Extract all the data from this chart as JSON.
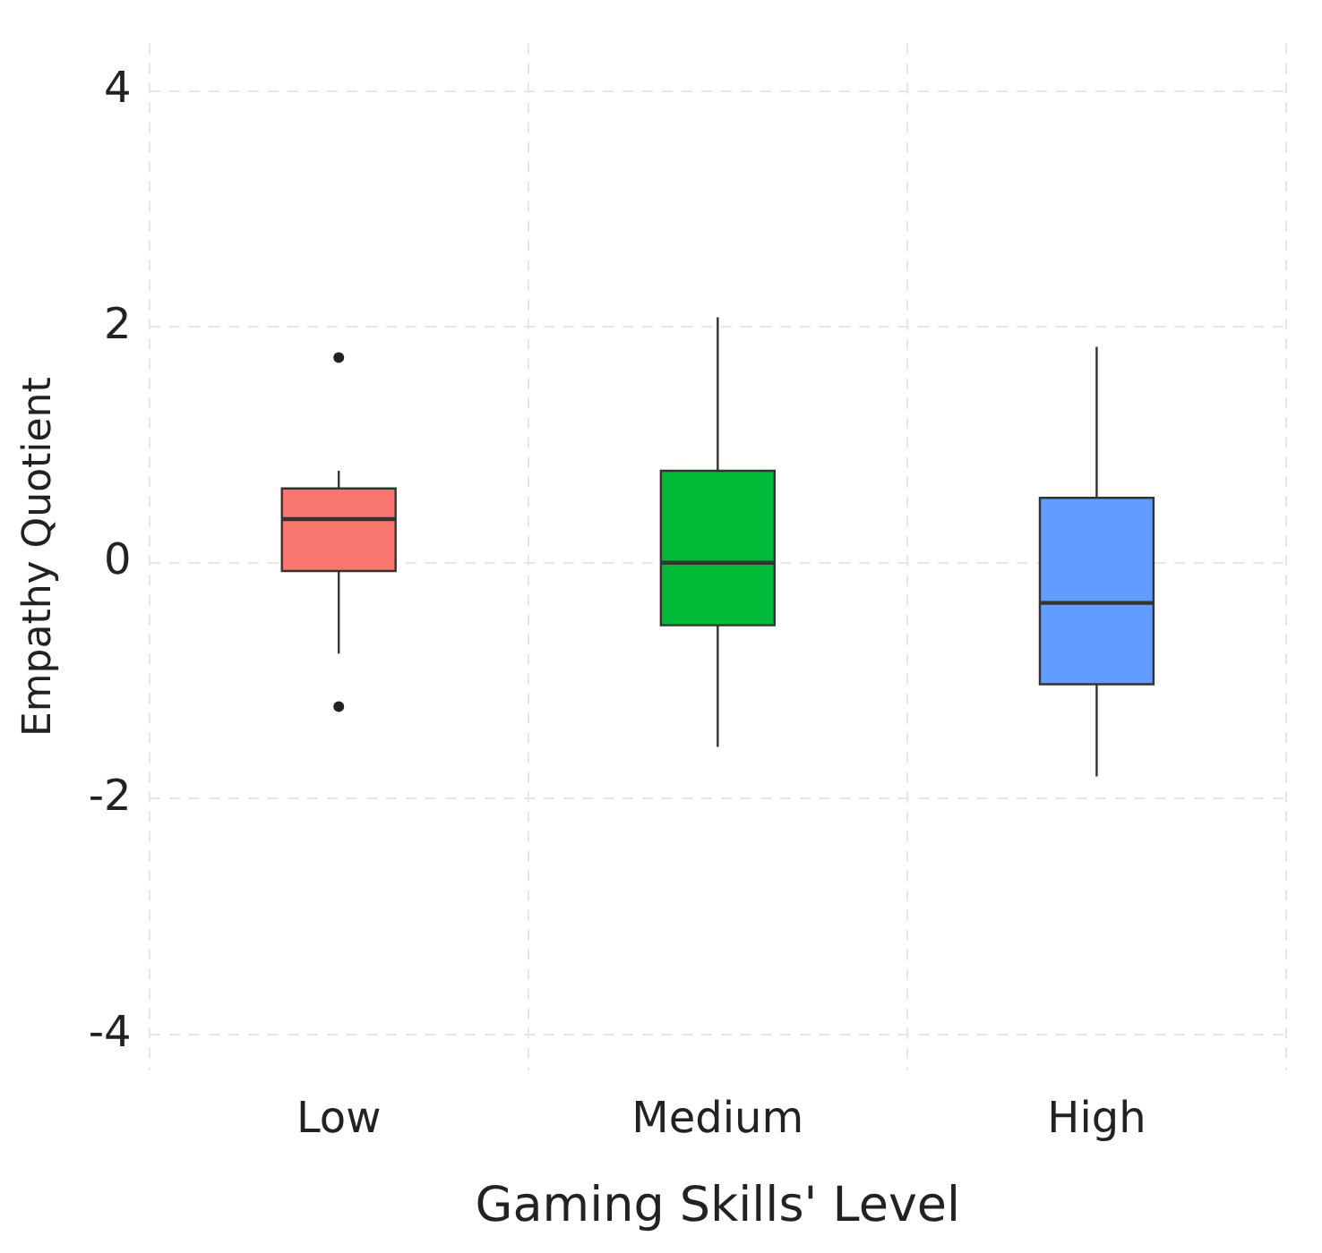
{
  "chart_data": {
    "type": "box",
    "xlabel": "Gaming Skills' Level",
    "ylabel": "Empathy Quotient",
    "categories": [
      "Low",
      "Medium",
      "High"
    ],
    "colors": [
      "#f8766d",
      "#00ba38",
      "#619cff"
    ],
    "boxes": [
      {
        "low": -0.77,
        "q1": -0.07,
        "median": 0.37,
        "q3": 0.63,
        "high": 0.78,
        "outliers": [
          1.74,
          -1.22
        ]
      },
      {
        "low": -1.56,
        "q1": -0.53,
        "median": 0,
        "q3": 0.78,
        "high": 2.08
      },
      {
        "low": -1.81,
        "q1": -1.03,
        "median": -0.34,
        "q3": 0.55,
        "high": 1.83
      }
    ],
    "ylim": [
      -4.3,
      4.4
    ],
    "yticks": [
      -4,
      -2,
      0,
      2,
      4
    ],
    "grid": true,
    "legend": false
  }
}
